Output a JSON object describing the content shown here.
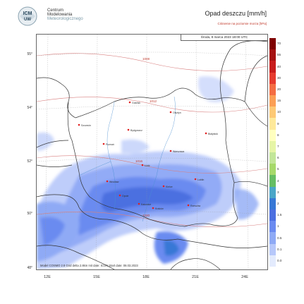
{
  "header": {
    "org_lines": [
      "Centrum",
      "Modelowania",
      "Meteorologicznego"
    ],
    "logo_text": "ICM",
    "logo_letters": "UW",
    "title": "Opad deszczu [mm/h]",
    "subtitle": "Ciśnienie na poziomie morza [hPa]",
    "date": "Środa, 8 marca 2023 18:00 UTC",
    "footer": "Model COSMO 2.8 Grid delta 2.8km  Init date: ICON  Start date: 08.03.2023"
  },
  "map": {
    "lat_labels": [
      "55°",
      "54°",
      "52°",
      "50°",
      "48°"
    ],
    "lon_labels": [
      "12E",
      "15E",
      "18E",
      "21E",
      "24E"
    ],
    "cities": [
      "Gdańsk",
      "Olsztyn",
      "Białystok",
      "Szczecin",
      "Bydgoszcz",
      "Poznań",
      "Warszawa",
      "Łódź",
      "Wrocław",
      "Kielce",
      "Lublin",
      "Opole",
      "Katowice",
      "Kraków",
      "Rzeszów"
    ],
    "isobars": [
      "1008",
      "1012",
      "1016",
      "1020"
    ]
  },
  "legend": {
    "labels": [
      "70",
      "55",
      "40",
      "30",
      "20",
      "15",
      "10",
      "9",
      "8",
      "7",
      "6",
      "5",
      "4",
      "3",
      "2",
      "1.5",
      "1",
      "0.5",
      "0.1",
      "0.0"
    ],
    "colors": [
      "#7f0000",
      "#a51212",
      "#c81c1c",
      "#e63b2e",
      "#f46d43",
      "#fb9f55",
      "#fdc975",
      "#fee99a",
      "#ffffbf",
      "#e6f5a6",
      "#c2e699",
      "#a6d96a",
      "#66bd63",
      "#4aa6c8",
      "#3778d6",
      "#4c6fe0",
      "#6b8bf0",
      "#8faaf5",
      "#b7c8fa",
      "#e3ebfd"
    ]
  }
}
